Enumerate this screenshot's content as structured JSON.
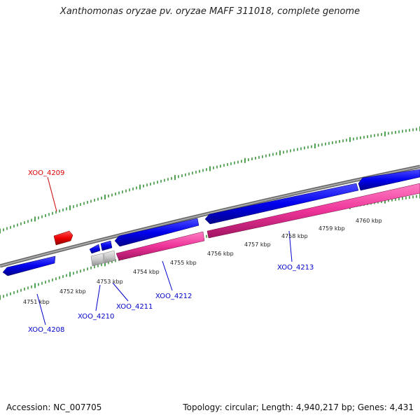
{
  "title": "Xanthomonas oryzae pv. oryzae MAFF 311018, complete genome",
  "footer": {
    "accession": "Accession: NC_007705",
    "summary": "Topology: circular; Length: 4,940,217 bp; Genes: 4,431"
  },
  "scale_labels": [
    "4751 kbp",
    "4752 kbp",
    "4753 kbp",
    "4754 kbp",
    "4755 kbp",
    "4756 kbp",
    "4757 kbp",
    "4758 kbp",
    "4759 kbp",
    "4760 kbp"
  ],
  "gene_labels": [
    {
      "text": "XOO_4209",
      "color": "#dd0000"
    },
    {
      "text": "XOO_4208",
      "color": "#0000cc"
    },
    {
      "text": "XOO_4210",
      "color": "#0000cc"
    },
    {
      "text": "XOO_4211",
      "color": "#0000cc"
    },
    {
      "text": "XOO_4212",
      "color": "#0000cc"
    },
    {
      "text": "XOO_4213",
      "color": "#0000cc"
    }
  ],
  "colors": {
    "forward_gene": "#0000ee",
    "reverse_gene": "#ee3399",
    "highlight_gene": "#ee0000",
    "pseudo_gene": "#c8c8c8",
    "backbone": "#888888",
    "ticks": "#228822"
  }
}
